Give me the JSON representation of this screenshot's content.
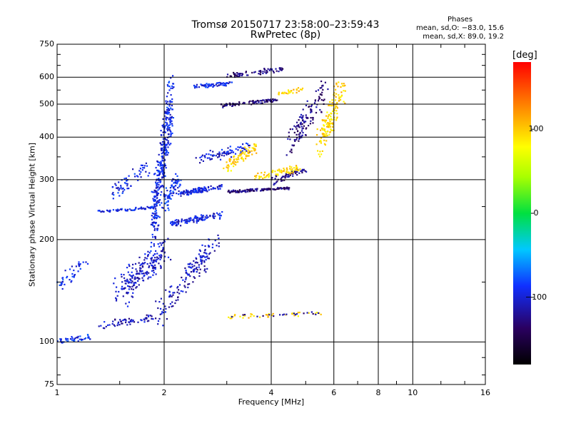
{
  "chart_data": {
    "type": "scatter",
    "title": "Tromsø 20150717 23:58:00–23:59:43",
    "subtitle": "RwPretec (8p)",
    "xlabel": "Frequency [MHz]",
    "ylabel": "Stationary phase Virtual Height [km]",
    "xscale": "log",
    "yscale": "log",
    "xlim": [
      1,
      16
    ],
    "ylim": [
      75,
      750
    ],
    "xticks": [
      1,
      2,
      4,
      6,
      8,
      10,
      16
    ],
    "yticks": [
      75,
      100,
      200,
      300,
      400,
      500,
      600,
      750
    ],
    "grid": true,
    "stats": {
      "heading": "Phases",
      "line_o": "mean, sd,O: −83.0, 15.6",
      "line_x": "mean, sd,X: 89.0, 19.2"
    },
    "colorbar": {
      "label": "[deg]",
      "range": [
        -180,
        180
      ],
      "ticks": [
        100,
        0,
        -100
      ],
      "placement": "right"
    },
    "series": [
      {
        "traces": [
          {
            "x0": 1.0,
            "x1": 1.25,
            "y0": 100,
            "y1": 104,
            "phase": -90,
            "n": 45,
            "spread": 0.03
          },
          {
            "x0": 1.0,
            "x1": 1.2,
            "y0": 140,
            "y1": 180,
            "phase": -90,
            "n": 40,
            "spread": 0.05
          },
          {
            "x0": 1.3,
            "x1": 1.9,
            "y0": 240,
            "y1": 250,
            "phase": -95,
            "n": 60,
            "spread": 0.01
          },
          {
            "x0": 1.3,
            "x1": 1.9,
            "y0": 110,
            "y1": 120,
            "phase": -110,
            "n": 60,
            "spread": 0.04
          },
          {
            "x0": 1.5,
            "x1": 2.0,
            "y0": 130,
            "y1": 200,
            "phase": -105,
            "n": 220,
            "spread": 0.09
          },
          {
            "x0": 1.4,
            "x1": 1.8,
            "y0": 260,
            "y1": 340,
            "phase": -95,
            "n": 60,
            "spread": 0.05
          },
          {
            "x0": 1.85,
            "x1": 2.1,
            "y0": 180,
            "y1": 630,
            "phase": -95,
            "n": 360,
            "spread": 0.03
          },
          {
            "x0": 2.0,
            "x1": 2.2,
            "y0": 240,
            "y1": 320,
            "phase": -90,
            "n": 80,
            "spread": 0.05
          },
          {
            "x0": 1.9,
            "x1": 2.6,
            "y0": 110,
            "y1": 190,
            "phase": -110,
            "n": 100,
            "spread": 0.06
          },
          {
            "x0": 2.3,
            "x1": 2.8,
            "y0": 150,
            "y1": 210,
            "phase": -105,
            "n": 60,
            "spread": 0.05
          },
          {
            "x0": 2.1,
            "x1": 2.9,
            "y0": 220,
            "y1": 240,
            "phase": -100,
            "n": 110,
            "spread": 0.03
          },
          {
            "x0": 2.2,
            "x1": 2.9,
            "y0": 270,
            "y1": 290,
            "phase": -100,
            "n": 110,
            "spread": 0.02
          },
          {
            "x0": 2.4,
            "x1": 3.1,
            "y0": 560,
            "y1": 580,
            "phase": -95,
            "n": 60,
            "spread": 0.02
          },
          {
            "x0": 2.5,
            "x1": 3.5,
            "y0": 340,
            "y1": 380,
            "phase": -100,
            "n": 80,
            "spread": 0.04
          },
          {
            "x0": 2.9,
            "x1": 4.2,
            "y0": 490,
            "y1": 520,
            "phase": -130,
            "n": 90,
            "spread": 0.01
          },
          {
            "x0": 3.0,
            "x1": 4.3,
            "y0": 600,
            "y1": 640,
            "phase": -130,
            "n": 70,
            "spread": 0.02
          },
          {
            "x0": 3.0,
            "x1": 4.5,
            "y0": 275,
            "y1": 285,
            "phase": -130,
            "n": 120,
            "spread": 0.01
          },
          {
            "x0": 4.0,
            "x1": 5.0,
            "y0": 290,
            "y1": 330,
            "phase": -125,
            "n": 60,
            "spread": 0.02
          },
          {
            "x0": 3.0,
            "x1": 3.6,
            "y0": 320,
            "y1": 380,
            "phase": 95,
            "n": 80,
            "spread": 0.05
          },
          {
            "x0": 3.6,
            "x1": 4.8,
            "y0": 300,
            "y1": 330,
            "phase": 95,
            "n": 70,
            "spread": 0.03
          },
          {
            "x0": 4.2,
            "x1": 5.0,
            "y0": 530,
            "y1": 560,
            "phase": 100,
            "n": 30,
            "spread": 0.02
          },
          {
            "x0": 5.5,
            "x1": 6.3,
            "y0": 350,
            "y1": 600,
            "phase": 95,
            "n": 150,
            "spread": 0.06
          },
          {
            "x0": 4.5,
            "x1": 5.7,
            "y0": 350,
            "y1": 600,
            "phase": -125,
            "n": 130,
            "spread": 0.04
          },
          {
            "x0": 3.0,
            "x1": 5.5,
            "y0": 118,
            "y1": 122,
            "phase": 95,
            "n": 40,
            "spread": 0.02
          },
          {
            "x0": 3.0,
            "x1": 5.5,
            "y0": 118,
            "y1": 122,
            "phase": -125,
            "n": 20,
            "spread": 0.02
          }
        ]
      }
    ]
  }
}
